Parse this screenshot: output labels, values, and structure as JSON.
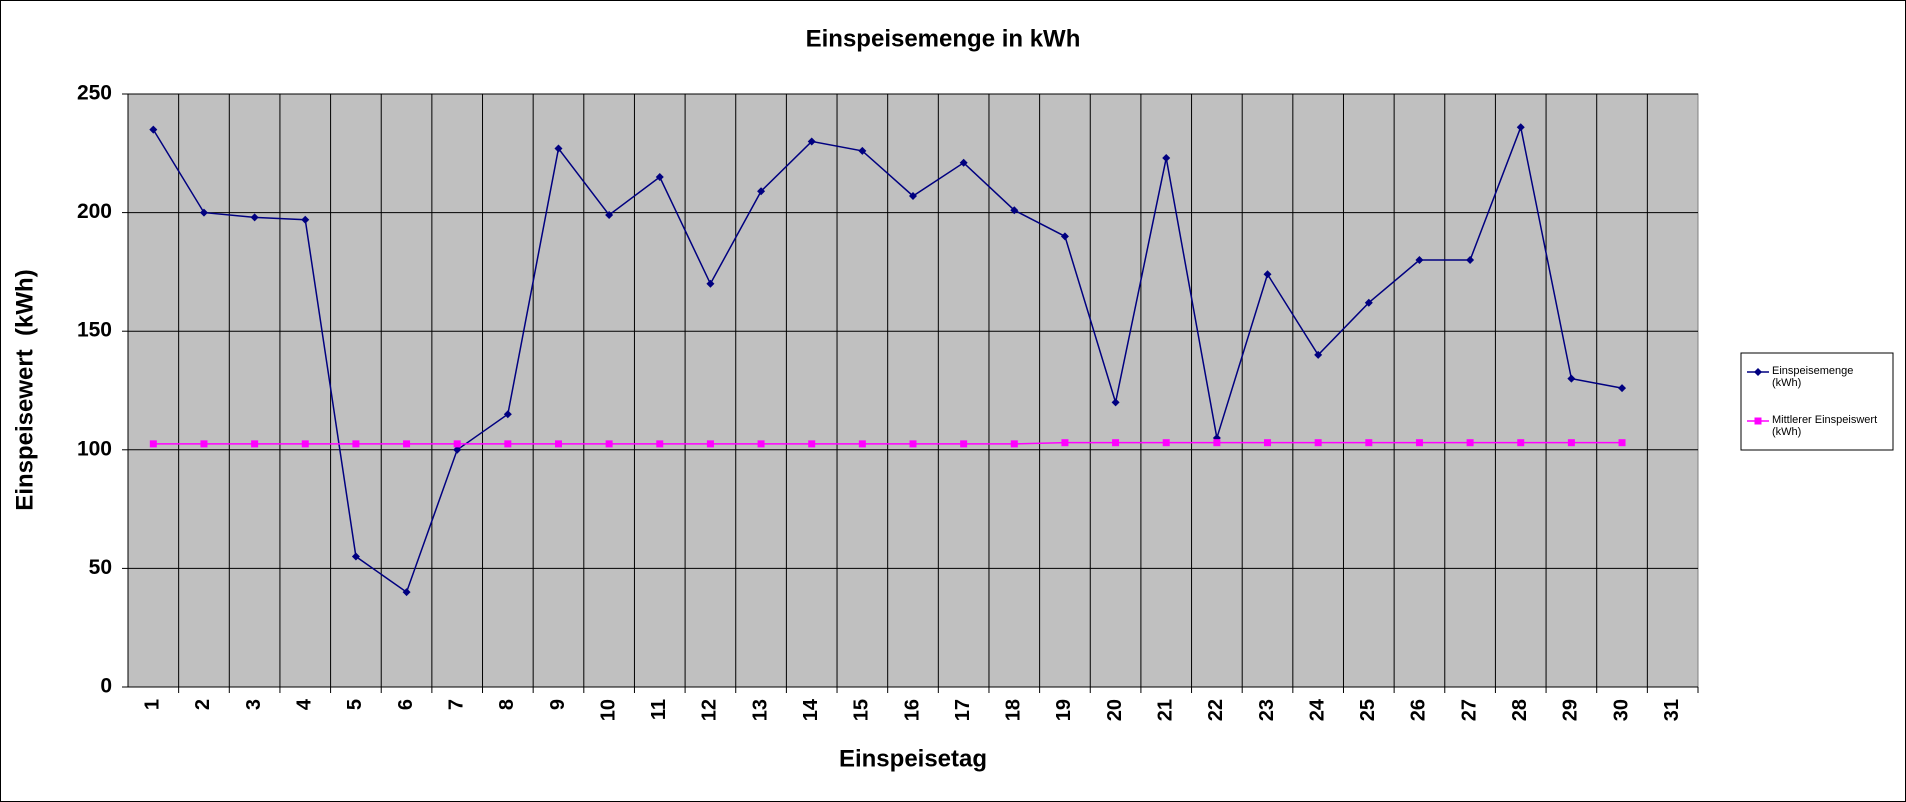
{
  "chart_data": {
    "type": "line",
    "title": "Einspeisemenge in kWh",
    "x_label": "Einspeisetag",
    "y_label": "Einspeisewert  (kWh)",
    "categories": [
      "1",
      "2",
      "3",
      "4",
      "5",
      "6",
      "7",
      "8",
      "9",
      "10",
      "11",
      "12",
      "13",
      "14",
      "15",
      "16",
      "17",
      "18",
      "19",
      "20",
      "21",
      "22",
      "23",
      "24",
      "25",
      "26",
      "27",
      "28",
      "29",
      "30",
      "31"
    ],
    "series": [
      {
        "name": "Einspeisemenge (kWh)",
        "color": "#000080",
        "marker": "diamond",
        "values": [
          235,
          200,
          198,
          197,
          55,
          40,
          100,
          115,
          227,
          199,
          215,
          170,
          209,
          230,
          226,
          207,
          221,
          201,
          190,
          120,
          223,
          105,
          174,
          140,
          162,
          180,
          180,
          236,
          130,
          126,
          null
        ]
      },
      {
        "name": "Mittlerer Einspeiswert (kWh)",
        "color": "#ff00ff",
        "marker": "square",
        "values": [
          102.5,
          102.5,
          102.5,
          102.5,
          102.5,
          102.5,
          102.5,
          102.5,
          102.5,
          102.5,
          102.5,
          102.5,
          102.5,
          102.5,
          102.5,
          102.5,
          102.5,
          102.5,
          103,
          103,
          103,
          103,
          103,
          103,
          103,
          103,
          103,
          103,
          103,
          103,
          null
        ]
      }
    ],
    "ylim": [
      0,
      250
    ],
    "yticks": [
      0,
      50,
      100,
      150,
      200,
      250
    ],
    "grid": true,
    "legend": "right",
    "plot_background": "#c0c0c0"
  }
}
